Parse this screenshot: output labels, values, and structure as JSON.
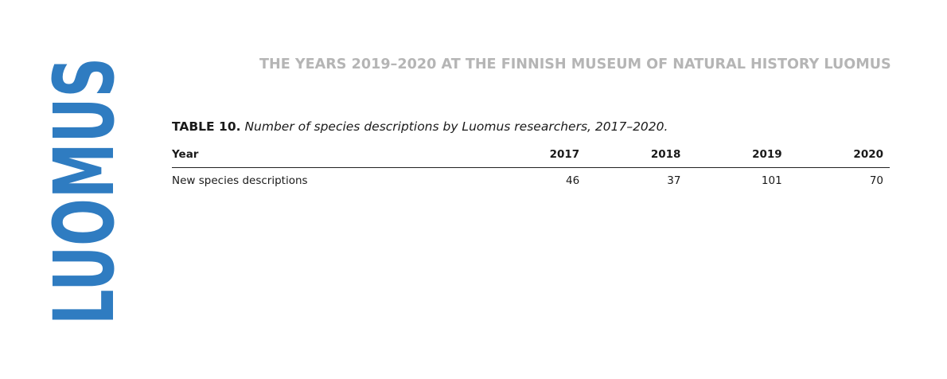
{
  "logo": {
    "text": "LUOMUS",
    "color": "#2f7cc1"
  },
  "header": {
    "title": "THE YEARS 2019–2020 AT THE FINNISH MUSEUM OF NATURAL HISTORY LUOMUS",
    "color": "#b5b5b5"
  },
  "table": {
    "caption_label": "TABLE 10.",
    "caption_text": "Number of species descriptions by Luomus researchers, 2017–2020.",
    "columns": [
      "Year",
      "2017",
      "2018",
      "2019",
      "2020"
    ],
    "rows": [
      {
        "label": "New species descriptions",
        "values": [
          "46",
          "37",
          "101",
          "70"
        ]
      }
    ]
  }
}
